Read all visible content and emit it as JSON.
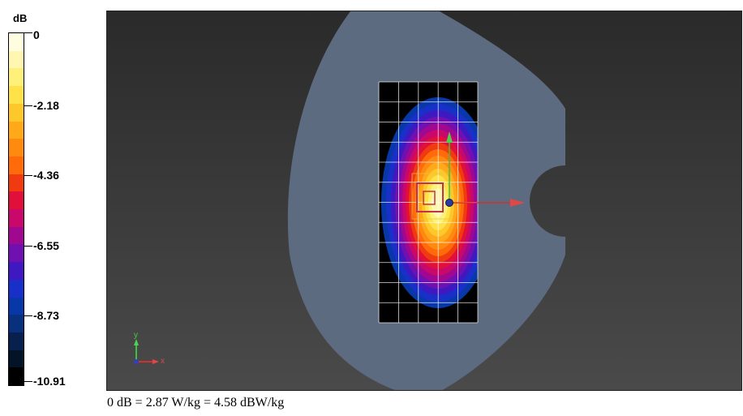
{
  "legend": {
    "unit": "dB",
    "ticks": [
      "0",
      "-2.18",
      "-4.36",
      "-6.55",
      "-8.73",
      "-10.91"
    ],
    "colors": [
      "#fffde0",
      "#fff7b0",
      "#fff07a",
      "#ffe24a",
      "#ffc82a",
      "#ffa81a",
      "#ff8a10",
      "#ff6a0a",
      "#f03a10",
      "#e0103a",
      "#c8086a",
      "#a00890",
      "#7010b0",
      "#4018c0",
      "#1830c8",
      "#0838a8",
      "#08307c",
      "#08204e",
      "#041428",
      "#000000"
    ]
  },
  "viewport": {
    "axis_x_label": "x",
    "axis_y_label": "y",
    "phantom_color": "#5d6b80",
    "grid_color": "#ffffff",
    "grid_background": "#000000"
  },
  "footer": {
    "text": "0 dB = 2.87 W/kg = 4.58 dBW/kg"
  }
}
